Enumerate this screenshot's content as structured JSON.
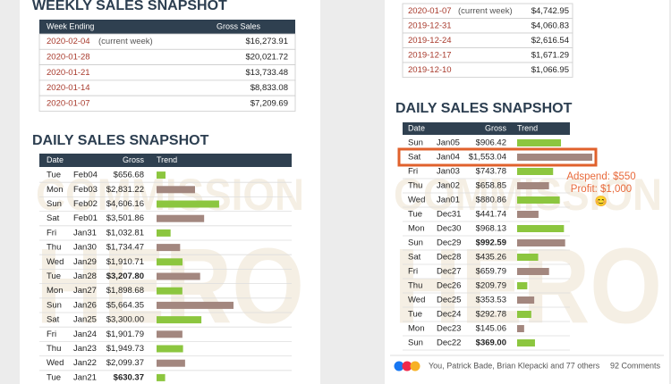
{
  "watermark": [
    "COMMISSION",
    "HERO"
  ],
  "trend_colors": [
    "#8cc63f",
    "#a3877f"
  ],
  "panels": [
    {
      "weekly": {
        "title": "WEEKLY SALES SNAPSHOT",
        "columns": [
          "Week Ending",
          "Gross Sales"
        ],
        "rows": [
          {
            "week": "2020-02-04",
            "note": "(current week)",
            "gross": "$16,273.91"
          },
          {
            "week": "2020-01-28",
            "gross": "$20,021.72"
          },
          {
            "week": "2020-01-21",
            "gross": "$13,733.48"
          },
          {
            "week": "2020-01-14",
            "gross": "$8,833.08"
          },
          {
            "week": "2020-01-07",
            "gross": "$7,209.69"
          }
        ]
      },
      "daily": {
        "title": "DAILY SALES SNAPSHOT",
        "columns": [
          "Date",
          "Gross",
          "Trend"
        ],
        "rows": [
          {
            "day": "Tue",
            "date": "Feb04",
            "gross": 656.68,
            "gross_label": "$656.68"
          },
          {
            "day": "Mon",
            "date": "Feb03",
            "gross": 2831.22,
            "gross_label": "$2,831.22"
          },
          {
            "day": "Sun",
            "date": "Feb02",
            "gross": 4606.16,
            "gross_label": "$4,606.16"
          },
          {
            "day": "Sat",
            "date": "Feb01",
            "gross": 3501.86,
            "gross_label": "$3,501.86"
          },
          {
            "day": "Fri",
            "date": "Jan31",
            "gross": 1032.81,
            "gross_label": "$1,032.81"
          },
          {
            "day": "Thu",
            "date": "Jan30",
            "gross": 1734.47,
            "gross_label": "$1,734.47"
          },
          {
            "day": "Wed",
            "date": "Jan29",
            "gross": 1910.71,
            "gross_label": "$1,910.71"
          },
          {
            "day": "Tue",
            "date": "Jan28",
            "gross": 3207.8,
            "gross_label": "$3,207.80",
            "bold": true
          },
          {
            "day": "Mon",
            "date": "Jan27",
            "gross": 1898.68,
            "gross_label": "$1,898.68"
          },
          {
            "day": "Sun",
            "date": "Jan26",
            "gross": 5664.35,
            "gross_label": "$5,664.35"
          },
          {
            "day": "Sat",
            "date": "Jan25",
            "gross": 3300.0,
            "gross_label": "$3,300.00"
          },
          {
            "day": "Fri",
            "date": "Jan24",
            "gross": 1901.79,
            "gross_label": "$1,901.79"
          },
          {
            "day": "Thu",
            "date": "Jan23",
            "gross": 1949.73,
            "gross_label": "$1,949.73"
          },
          {
            "day": "Wed",
            "date": "Jan22",
            "gross": 2099.37,
            "gross_label": "$2,099.37"
          },
          {
            "day": "Tue",
            "date": "Jan21",
            "gross": 630.37,
            "gross_label": "$630.37",
            "bold": true
          }
        ]
      }
    },
    {
      "weekly": {
        "rows": [
          {
            "week": "2020-01-07",
            "note": "(current week)",
            "gross": "$4,742.95"
          },
          {
            "week": "2019-12-31",
            "gross": "$4,060.83"
          },
          {
            "week": "2019-12-24",
            "gross": "$2,616.54"
          },
          {
            "week": "2019-12-17",
            "gross": "$1,671.29"
          },
          {
            "week": "2019-12-10",
            "gross": "$1,066.95"
          }
        ]
      },
      "daily": {
        "title": "DAILY SALES SNAPSHOT",
        "columns": [
          "Date",
          "Gross",
          "Trend"
        ],
        "rows": [
          {
            "day": "Sun",
            "date": "Jan05",
            "gross": 906.42,
            "gross_label": "$906.42"
          },
          {
            "day": "Sat",
            "date": "Jan04",
            "gross": 1553.04,
            "gross_label": "$1,553.04"
          },
          {
            "day": "Fri",
            "date": "Jan03",
            "gross": 743.78,
            "gross_label": "$743.78"
          },
          {
            "day": "Thu",
            "date": "Jan02",
            "gross": 658.85,
            "gross_label": "$658.85"
          },
          {
            "day": "Wed",
            "date": "Jan01",
            "gross": 880.86,
            "gross_label": "$880.86"
          },
          {
            "day": "Tue",
            "date": "Dec31",
            "gross": 441.74,
            "gross_label": "$441.74"
          },
          {
            "day": "Mon",
            "date": "Dec30",
            "gross": 968.13,
            "gross_label": "$968.13"
          },
          {
            "day": "Sun",
            "date": "Dec29",
            "gross": 992.59,
            "gross_label": "$992.59",
            "bold": true
          },
          {
            "day": "Sat",
            "date": "Dec28",
            "gross": 435.26,
            "gross_label": "$435.26"
          },
          {
            "day": "Fri",
            "date": "Dec27",
            "gross": 659.79,
            "gross_label": "$659.79"
          },
          {
            "day": "Thu",
            "date": "Dec26",
            "gross": 209.79,
            "gross_label": "$209.79"
          },
          {
            "day": "Wed",
            "date": "Dec25",
            "gross": 353.53,
            "gross_label": "$353.53"
          },
          {
            "day": "Tue",
            "date": "Dec24",
            "gross": 292.78,
            "gross_label": "$292.78"
          },
          {
            "day": "Mon",
            "date": "Dec23",
            "gross": 145.06,
            "gross_label": "$145.06"
          },
          {
            "day": "Sun",
            "date": "Dec22",
            "gross": 369.0,
            "gross_label": "$369.00",
            "bold": true
          }
        ]
      },
      "highlight_row": 1,
      "annotation": [
        "Adspend: $550",
        "Profit: $1,000",
        "😊"
      ]
    }
  ],
  "footer": {
    "names": "You, Patrick Bade, Brian Klepacki and 77 others",
    "comments": "92 Comments"
  }
}
